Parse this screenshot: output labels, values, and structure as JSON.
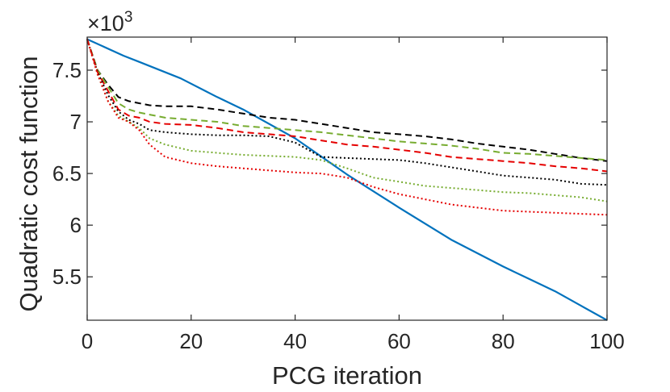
{
  "chart_data": {
    "type": "line",
    "title": "",
    "xlabel": "PCG iteration",
    "ylabel": "Quadratic cost function",
    "y_multiplier": {
      "base": "×10",
      "exponent": "3"
    },
    "xlim": [
      0,
      100
    ],
    "ylim": [
      5.08,
      7.82
    ],
    "x_ticks": [
      0,
      20,
      40,
      60,
      80,
      100
    ],
    "x_tick_labels": [
      "0",
      "20",
      "40",
      "60",
      "80",
      "100"
    ],
    "y_ticks": [
      5.5,
      6,
      6.5,
      7,
      7.5
    ],
    "y_tick_labels": [
      "5.5",
      "6",
      "6.5",
      "7",
      "7.5"
    ],
    "grid": false,
    "legend": "none",
    "series": [
      {
        "name": "solid-blue",
        "color": "#0072BD",
        "style": "solid",
        "x": [
          0,
          7,
          10,
          18,
          25,
          30,
          40,
          50,
          60,
          70,
          80,
          85,
          90,
          95,
          100
        ],
        "y": [
          7.8,
          7.64,
          7.58,
          7.42,
          7.24,
          7.12,
          6.84,
          6.49,
          6.17,
          5.86,
          5.6,
          5.48,
          5.36,
          5.22,
          5.08
        ]
      },
      {
        "name": "dashed-black",
        "color": "#000000",
        "style": "dashed",
        "x": [
          0,
          2,
          4,
          6,
          8,
          10,
          12,
          15,
          20,
          25,
          30,
          35,
          40,
          45,
          50,
          55,
          60,
          65,
          70,
          75,
          80,
          85,
          90,
          95,
          100
        ],
        "y": [
          7.8,
          7.5,
          7.36,
          7.24,
          7.2,
          7.18,
          7.16,
          7.15,
          7.15,
          7.12,
          7.08,
          7.04,
          7.02,
          6.98,
          6.94,
          6.9,
          6.88,
          6.86,
          6.83,
          6.79,
          6.76,
          6.73,
          6.69,
          6.65,
          6.62
        ]
      },
      {
        "name": "dashed-green",
        "color": "#77AC30",
        "style": "dashed",
        "x": [
          0,
          2,
          4,
          6,
          8,
          10,
          12,
          15,
          20,
          25,
          30,
          35,
          40,
          45,
          50,
          55,
          60,
          65,
          70,
          75,
          80,
          85,
          90,
          95,
          100
        ],
        "y": [
          7.8,
          7.5,
          7.34,
          7.18,
          7.12,
          7.09,
          7.07,
          7.04,
          7.02,
          7.0,
          6.96,
          6.94,
          6.92,
          6.9,
          6.87,
          6.84,
          6.81,
          6.79,
          6.77,
          6.74,
          6.7,
          6.69,
          6.67,
          6.65,
          6.63
        ]
      },
      {
        "name": "dashed-red",
        "color": "#E50000",
        "style": "dashed",
        "x": [
          0,
          2,
          4,
          6,
          8,
          10,
          12,
          15,
          20,
          25,
          30,
          35,
          40,
          45,
          50,
          55,
          60,
          65,
          70,
          75,
          80,
          85,
          90,
          95,
          100
        ],
        "y": [
          7.8,
          7.48,
          7.3,
          7.12,
          7.06,
          7.04,
          7.0,
          6.98,
          6.97,
          6.94,
          6.9,
          6.88,
          6.86,
          6.82,
          6.78,
          6.76,
          6.73,
          6.7,
          6.66,
          6.64,
          6.62,
          6.6,
          6.57,
          6.55,
          6.52
        ]
      },
      {
        "name": "dotted-black",
        "color": "#000000",
        "style": "dotted",
        "x": [
          0,
          2,
          4,
          6,
          8,
          10,
          12,
          15,
          20,
          25,
          30,
          35,
          40,
          45,
          50,
          55,
          60,
          65,
          70,
          75,
          80,
          85,
          90,
          95,
          100
        ],
        "y": [
          7.8,
          7.48,
          7.26,
          7.1,
          7.02,
          6.98,
          6.92,
          6.9,
          6.88,
          6.87,
          6.87,
          6.86,
          6.8,
          6.66,
          6.65,
          6.64,
          6.63,
          6.6,
          6.56,
          6.52,
          6.48,
          6.46,
          6.44,
          6.4,
          6.39
        ]
      },
      {
        "name": "dotted-green",
        "color": "#77AC30",
        "style": "dotted",
        "x": [
          0,
          2,
          4,
          6,
          8,
          10,
          12,
          15,
          20,
          25,
          30,
          35,
          40,
          45,
          50,
          55,
          60,
          65,
          70,
          75,
          80,
          85,
          90,
          95,
          100
        ],
        "y": [
          7.8,
          7.46,
          7.2,
          7.06,
          7.0,
          6.94,
          6.84,
          6.78,
          6.72,
          6.7,
          6.68,
          6.67,
          6.66,
          6.63,
          6.55,
          6.46,
          6.42,
          6.38,
          6.36,
          6.34,
          6.32,
          6.31,
          6.29,
          6.27,
          6.23
        ]
      },
      {
        "name": "dotted-red",
        "color": "#E50000",
        "style": "dotted",
        "x": [
          0,
          2,
          4,
          6,
          8,
          10,
          12,
          15,
          20,
          25,
          30,
          35,
          40,
          45,
          50,
          55,
          60,
          65,
          70,
          75,
          80,
          85,
          90,
          95,
          100
        ],
        "y": [
          7.8,
          7.46,
          7.2,
          7.04,
          7.0,
          6.92,
          6.78,
          6.66,
          6.6,
          6.57,
          6.55,
          6.53,
          6.51,
          6.5,
          6.46,
          6.37,
          6.3,
          6.25,
          6.2,
          6.17,
          6.14,
          6.13,
          6.12,
          6.11,
          6.1
        ]
      }
    ]
  }
}
